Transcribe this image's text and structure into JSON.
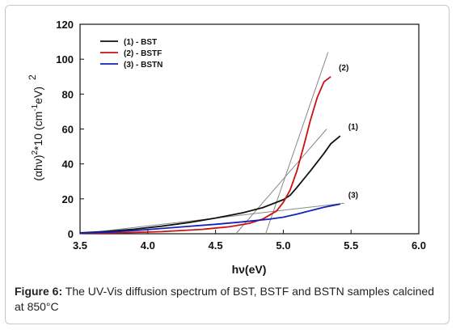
{
  "caption": {
    "label": "Figure 6:",
    "text": "The UV-Vis diffusion spectrum of BST, BSTF and BSTN samples calcined at 850°C"
  },
  "chart_data": {
    "type": "line",
    "xlabel": "hν(eV)",
    "ylabel_main": "(αhν)",
    "ylabel_sup1": "2",
    "ylabel_mid": "*10 (cm",
    "ylabel_sup2": "-1",
    "ylabel_tail": "eV)",
    "ylabel_sup3": "2",
    "xlim": [
      3.5,
      6.0
    ],
    "ylim": [
      0,
      120
    ],
    "xticks": [
      "3.5",
      "4.0",
      "4.5",
      "5.0",
      "5.5",
      "6.0"
    ],
    "yticks": [
      "0",
      "20",
      "40",
      "60",
      "80",
      "100",
      "120"
    ],
    "grid": false,
    "legend_position": "top-left",
    "series": [
      {
        "name": "(1) - BST",
        "color": "#111111",
        "end_label": "(1)",
        "x": [
          3.5,
          3.7,
          3.9,
          4.1,
          4.3,
          4.5,
          4.7,
          4.85,
          5.0,
          5.05,
          5.1,
          5.2,
          5.3,
          5.35,
          5.42
        ],
        "y": [
          0.5,
          1.3,
          2.6,
          4.3,
          6.4,
          9.0,
          12.0,
          15.0,
          19.5,
          22.0,
          26.5,
          36.0,
          46.0,
          51.5,
          56.0
        ]
      },
      {
        "name": "(2) - BSTF",
        "color": "#cc1111",
        "end_label": "(2)",
        "x": [
          3.5,
          3.8,
          4.1,
          4.4,
          4.6,
          4.75,
          4.85,
          4.95,
          5.0,
          5.05,
          5.1,
          5.15,
          5.2,
          5.25,
          5.3,
          5.35
        ],
        "y": [
          0.3,
          0.5,
          1.2,
          2.5,
          4.0,
          6.0,
          8.5,
          13.0,
          18.0,
          25.0,
          36.0,
          50.0,
          65.0,
          78.0,
          87.0,
          90.0
        ]
      },
      {
        "name": "(3) - BSTN",
        "color": "#1122bb",
        "end_label": "(3)",
        "x": [
          3.5,
          3.7,
          3.9,
          4.1,
          4.3,
          4.5,
          4.7,
          4.9,
          5.0,
          5.1,
          5.2,
          5.3,
          5.42
        ],
        "y": [
          0.3,
          0.9,
          1.8,
          3.0,
          4.2,
          5.4,
          6.8,
          8.4,
          9.5,
          11.2,
          13.2,
          15.2,
          17.0
        ]
      }
    ],
    "tangent_lines": [
      {
        "color": "#888888",
        "x": [
          4.65,
          5.32
        ],
        "y": [
          0,
          60
        ]
      },
      {
        "color": "#888888",
        "x": [
          4.87,
          5.33
        ],
        "y": [
          0,
          104
        ]
      },
      {
        "color": "#888888",
        "x": [
          3.5,
          5.45
        ],
        "y": [
          0,
          17.5
        ]
      }
    ]
  }
}
